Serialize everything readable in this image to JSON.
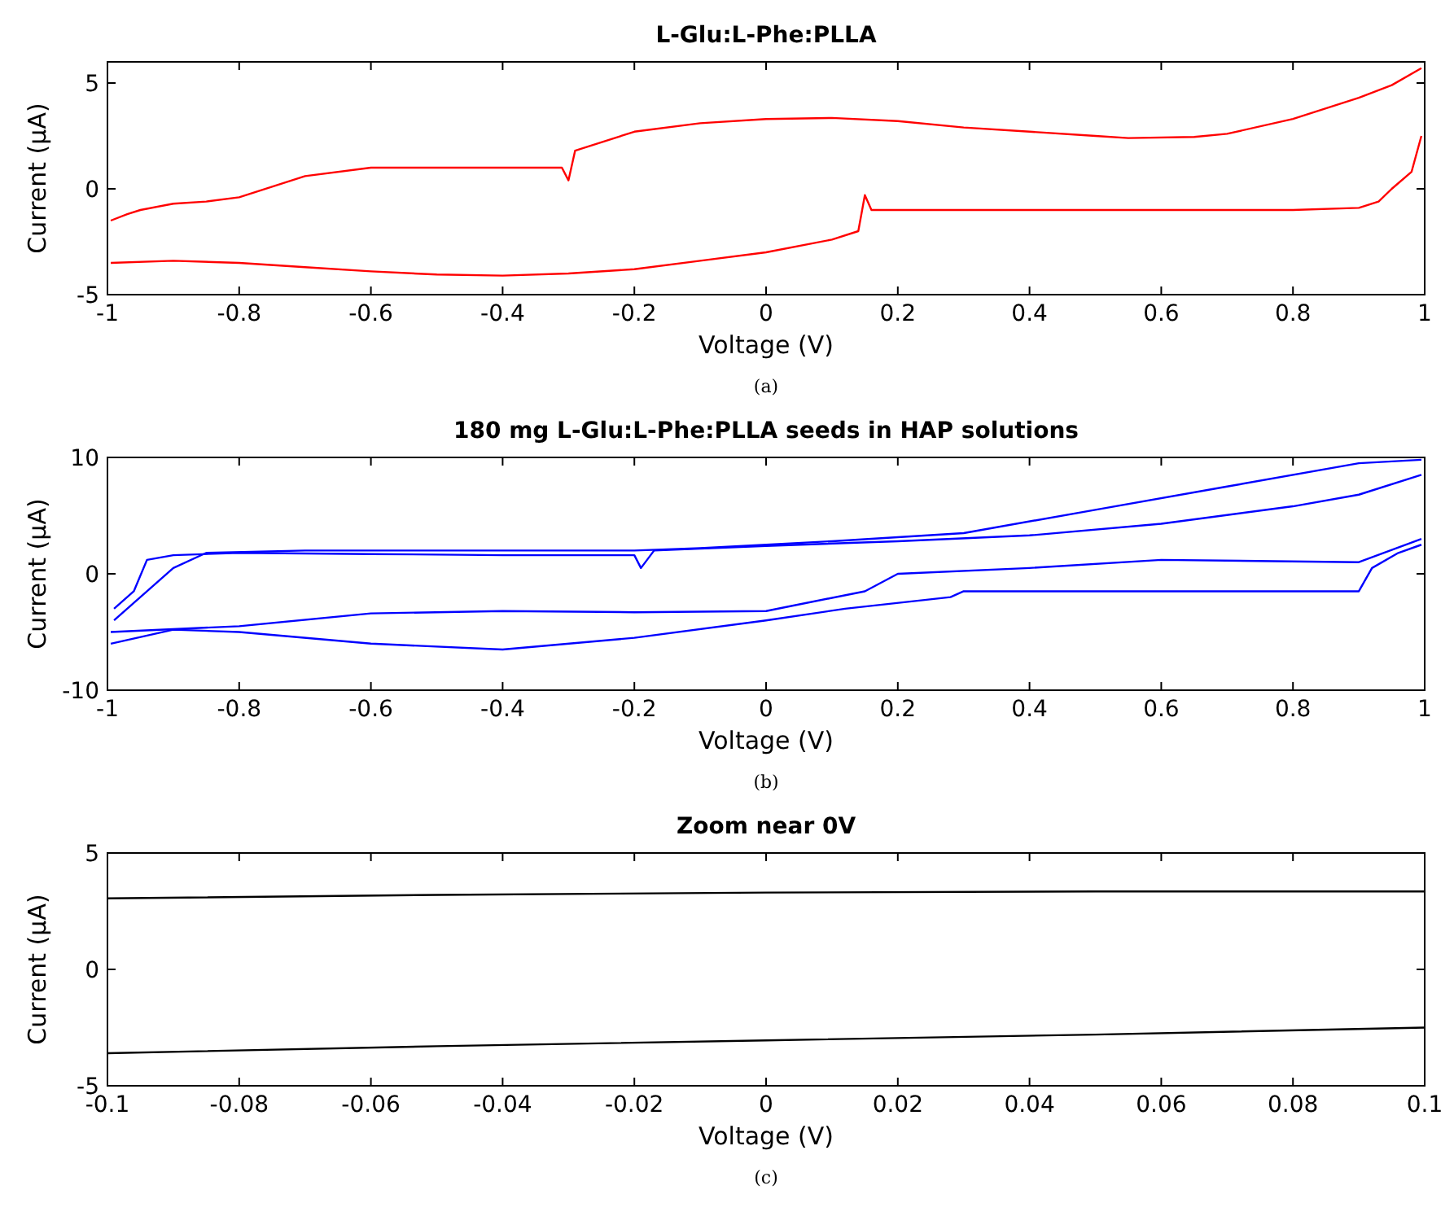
{
  "chart_data": [
    {
      "type": "line",
      "title": "L-Glu:L-Phe:PLLA",
      "xlabel": "Voltage (V)",
      "ylabel": "Current (μA)",
      "annotations": [
        "(a)"
      ],
      "xlim": [
        -1,
        1
      ],
      "ylim": [
        -5,
        6
      ],
      "xticks": [
        -1,
        -0.8,
        -0.6,
        -0.4,
        -0.2,
        0,
        0.2,
        0.4,
        0.6,
        0.8,
        1
      ],
      "yticks": [
        -5,
        0,
        5
      ],
      "series": [
        {
          "color": "#ff0000",
          "x": [
            -0.995,
            -0.97,
            -0.95,
            -0.9,
            -0.85,
            -0.8,
            -0.75,
            -0.7,
            -0.6,
            -0.31,
            -0.3,
            -0.29,
            -0.2,
            -0.1,
            0,
            0.1,
            0.2,
            0.3,
            0.4,
            0.5,
            0.55,
            0.65,
            0.7,
            0.8,
            0.9,
            0.95,
            0.995
          ],
          "values": [
            -1.5,
            -1.2,
            -1,
            -0.7,
            -0.6,
            -0.4,
            0.1,
            0.6,
            1,
            1,
            0.4,
            1.8,
            2.7,
            3.1,
            3.3,
            3.35,
            3.2,
            2.9,
            2.7,
            2.5,
            2.4,
            2.45,
            2.6,
            3.3,
            4.3,
            4.9,
            5.7
          ]
        },
        {
          "color": "#ff0000",
          "x": [
            -0.995,
            -0.9,
            -0.8,
            -0.7,
            -0.6,
            -0.5,
            -0.4,
            -0.3,
            -0.2,
            -0.1,
            0,
            0.1,
            0.14,
            0.15,
            0.16,
            0.3,
            0.5,
            0.7,
            0.8,
            0.9,
            0.93,
            0.95,
            0.98,
            0.995
          ],
          "values": [
            -3.5,
            -3.4,
            -3.5,
            -3.7,
            -3.9,
            -4.05,
            -4.1,
            -4,
            -3.8,
            -3.4,
            -3,
            -2.4,
            -2,
            -0.3,
            -1,
            -1,
            -1,
            -1,
            -1,
            -0.9,
            -0.6,
            0,
            0.8,
            2.5
          ]
        }
      ]
    },
    {
      "type": "line",
      "title": "180 mg L-Glu:L-Phe:PLLA seeds in HAP solutions",
      "xlabel": "Voltage (V)",
      "ylabel": "Current (μA)",
      "annotations": [
        "(b)"
      ],
      "xlim": [
        -1,
        1
      ],
      "ylim": [
        -10,
        10
      ],
      "xticks": [
        -1,
        -0.8,
        -0.6,
        -0.4,
        -0.2,
        0,
        0.2,
        0.4,
        0.6,
        0.8,
        1
      ],
      "yticks": [
        -10,
        0,
        10
      ],
      "series": [
        {
          "color": "#0000ff",
          "x": [
            -0.99,
            -0.96,
            -0.94,
            -0.9,
            -0.8,
            -0.6,
            -0.4,
            -0.2,
            -0.19,
            -0.17,
            0,
            0.2,
            0.4,
            0.6,
            0.8,
            0.9,
            0.995
          ],
          "values": [
            -3,
            -1.5,
            1.2,
            1.6,
            1.8,
            1.7,
            1.6,
            1.6,
            0.5,
            2,
            2.4,
            2.8,
            3.3,
            4.3,
            5.8,
            6.8,
            8.5
          ]
        },
        {
          "color": "#0000ff",
          "x": [
            -0.995,
            -0.9,
            -0.8,
            -0.6,
            -0.4,
            -0.2,
            0,
            0.12,
            0.28,
            0.3,
            0.5,
            0.7,
            0.9,
            0.92,
            0.96,
            0.995
          ],
          "values": [
            -6,
            -4.8,
            -5,
            -6,
            -6.5,
            -5.5,
            -4,
            -3,
            -2,
            -1.5,
            -1.5,
            -1.5,
            -1.5,
            0.5,
            1.8,
            2.5
          ]
        },
        {
          "color": "#0000ff",
          "x": [
            -0.99,
            -0.9,
            -0.85,
            -0.7,
            -0.4,
            -0.2,
            -0.1,
            0.1,
            0.3,
            0.5,
            0.7,
            0.9,
            0.995
          ],
          "values": [
            -4,
            0.5,
            1.8,
            2,
            2,
            2,
            2.2,
            2.8,
            3.5,
            5.5,
            7.5,
            9.5,
            9.8
          ]
        },
        {
          "color": "#0000ff",
          "x": [
            -0.995,
            -0.8,
            -0.6,
            -0.4,
            -0.2,
            0,
            0.15,
            0.2,
            0.4,
            0.6,
            0.9,
            0.995
          ],
          "values": [
            -5,
            -4.5,
            -3.4,
            -3.2,
            -3.3,
            -3.2,
            -1.5,
            0,
            0.5,
            1.2,
            1,
            3
          ]
        }
      ]
    },
    {
      "type": "line",
      "title": "Zoom near 0V",
      "xlabel": "Voltage (V)",
      "ylabel": "Current (μA)",
      "annotations": [
        "(c)"
      ],
      "xlim": [
        -0.1,
        0.1
      ],
      "ylim": [
        -5,
        5
      ],
      "xticks": [
        -0.1,
        -0.08,
        -0.06,
        -0.04,
        -0.02,
        0,
        0.02,
        0.04,
        0.06,
        0.08,
        0.1
      ],
      "yticks": [
        -5,
        0,
        5
      ],
      "series": [
        {
          "color": "#000000",
          "x": [
            -0.1,
            -0.05,
            0,
            0.05,
            0.1
          ],
          "values": [
            3.05,
            3.2,
            3.3,
            3.35,
            3.35
          ]
        },
        {
          "color": "#000000",
          "x": [
            -0.1,
            -0.05,
            0,
            0.05,
            0.1
          ],
          "values": [
            -3.6,
            -3.3,
            -3.05,
            -2.8,
            -2.5
          ]
        }
      ]
    }
  ]
}
